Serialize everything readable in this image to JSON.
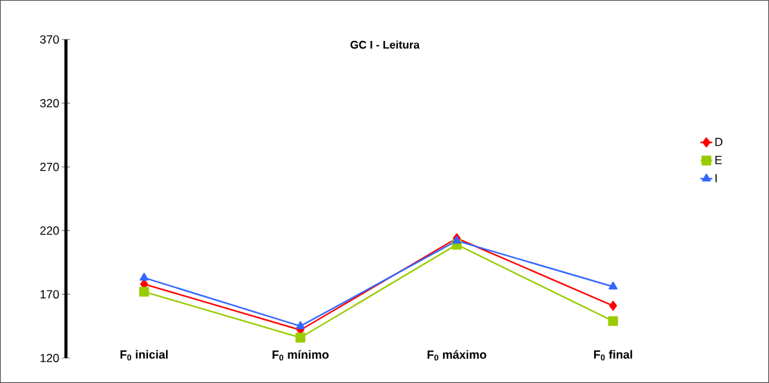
{
  "chart_data": {
    "type": "line",
    "title": "GC I - Leitura",
    "categories": [
      "F$_{0}$ inicial",
      "F$_{0}$ mínimo",
      "F$_{0}$ máximo",
      "F$_{0}$ final"
    ],
    "series": [
      {
        "name": "D",
        "color": "#ff0000",
        "marker": "diamond",
        "values": [
          178,
          142,
          214,
          161
        ]
      },
      {
        "name": "E",
        "color": "#99cc00",
        "marker": "square",
        "values": [
          172,
          136,
          209,
          149
        ]
      },
      {
        "name": "I",
        "color": "#3366ff",
        "marker": "triangle",
        "values": [
          183,
          145,
          212,
          176
        ]
      }
    ],
    "ylim": [
      120,
      370
    ],
    "yticks": [
      120,
      170,
      220,
      270,
      320,
      370
    ],
    "grid": false,
    "legend": "right"
  }
}
